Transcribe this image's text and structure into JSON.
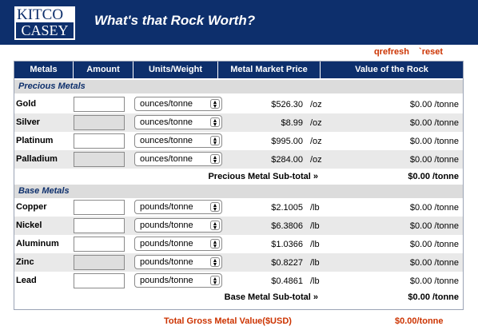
{
  "header": {
    "logo_top": "KITCO",
    "logo_bottom": "CASEY",
    "title": "What's that Rock Worth?"
  },
  "toolbar": {
    "refresh_label": "qrefresh",
    "reset_label": "`reset"
  },
  "table": {
    "columns": [
      "Metals",
      "Amount",
      "Units/Weight",
      "Metal Market Price",
      "Value of the Rock"
    ]
  },
  "precious": {
    "section_label": "Precious Metals",
    "rows": [
      {
        "name": "Gold",
        "unit": "ounces/tonne",
        "price": "$526.30",
        "price_unit": "/oz",
        "value": "$0.00 /tonne"
      },
      {
        "name": "Silver",
        "unit": "ounces/tonne",
        "price": "$8.99",
        "price_unit": "/oz",
        "value": "$0.00 /tonne"
      },
      {
        "name": "Platinum",
        "unit": "ounces/tonne",
        "price": "$995.00",
        "price_unit": "/oz",
        "value": "$0.00 /tonne"
      },
      {
        "name": "Palladium",
        "unit": "ounces/tonne",
        "price": "$284.00",
        "price_unit": "/oz",
        "value": "$0.00 /tonne"
      }
    ],
    "subtotal_label": "Precious Metal Sub-total »",
    "subtotal_value": "$0.00 /tonne"
  },
  "base": {
    "section_label": "Base Metals",
    "rows": [
      {
        "name": "Copper",
        "unit": "pounds/tonne",
        "price": "$2.1005",
        "price_unit": "/lb",
        "value": "$0.00 /tonne"
      },
      {
        "name": "Nickel",
        "unit": "pounds/tonne",
        "price": "$6.3806",
        "price_unit": "/lb",
        "value": "$0.00 /tonne"
      },
      {
        "name": "Aluminum",
        "unit": "pounds/tonne",
        "price": "$1.0366",
        "price_unit": "/lb",
        "value": "$0.00 /tonne"
      },
      {
        "name": "Zinc",
        "unit": "pounds/tonne",
        "price": "$0.8227",
        "price_unit": "/lb",
        "value": "$0.00 /tonne"
      },
      {
        "name": "Lead",
        "unit": "pounds/tonne",
        "price": "$0.4861",
        "price_unit": "/lb",
        "value": "$0.00 /tonne"
      }
    ],
    "subtotal_label": "Base Metal Sub-total »",
    "subtotal_value": "$0.00 /tonne"
  },
  "total": {
    "label": "Total Gross Metal Value($USD)",
    "value": "$0.00/tonne"
  },
  "icons": {
    "units_dropdown": "updown-arrows-icon"
  },
  "colors": {
    "brand_navy": "#0d2f6c",
    "accent_red": "#cc3300",
    "row_alt": "#e9e9e9",
    "section_bg": "#dcdcdc"
  }
}
